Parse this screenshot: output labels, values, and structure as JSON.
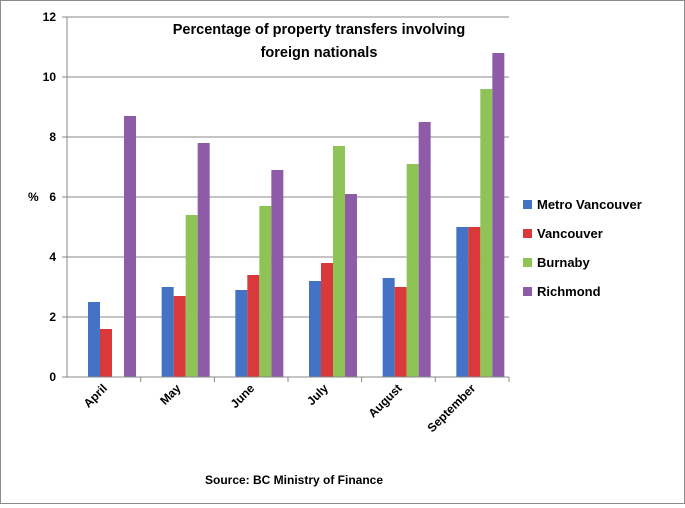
{
  "chart_data": {
    "type": "bar",
    "title_lines": [
      "Percentage of property transfers involving",
      "foreign nationals"
    ],
    "ylabel": "%",
    "xlabel": "",
    "source": "Source: BC Ministry of Finance",
    "ylim": [
      0,
      12
    ],
    "yticks": [
      "0",
      "2",
      "4",
      "6",
      "8",
      "10",
      "12"
    ],
    "categories": [
      "April",
      "May",
      "June",
      "July",
      "August",
      "September"
    ],
    "grid": true,
    "legend_position": "right",
    "series": [
      {
        "name": "Metro Vancouver",
        "color": "#4472c4",
        "values": [
          2.5,
          3.0,
          2.9,
          3.2,
          3.3,
          5.0
        ]
      },
      {
        "name": "Vancouver",
        "color": "#d9393a",
        "values": [
          1.6,
          2.7,
          3.4,
          3.8,
          3.0,
          5.0
        ]
      },
      {
        "name": "Burnaby",
        "color": "#8fc355",
        "values": [
          null,
          5.4,
          5.7,
          7.7,
          7.1,
          9.6
        ]
      },
      {
        "name": "Richmond",
        "color": "#8e5ba8",
        "values": [
          8.7,
          7.8,
          6.9,
          6.1,
          8.5,
          10.8
        ]
      }
    ]
  }
}
